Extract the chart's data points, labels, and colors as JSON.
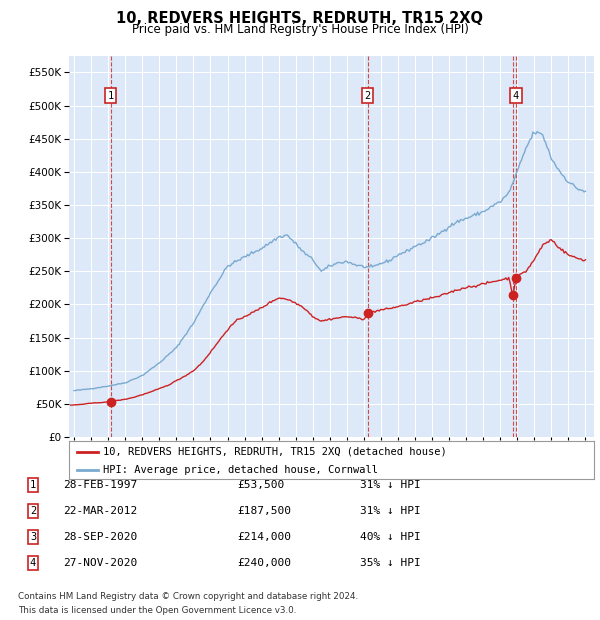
{
  "title": "10, REDVERS HEIGHTS, REDRUTH, TR15 2XQ",
  "subtitle": "Price paid vs. HM Land Registry's House Price Index (HPI)",
  "red_line_label": "10, REDVERS HEIGHTS, REDRUTH, TR15 2XQ (detached house)",
  "blue_line_label": "HPI: Average price, detached house, Cornwall",
  "background_color": "#dde8f8",
  "sale_points": [
    {
      "num": 1,
      "date": "28-FEB-1997",
      "price": 53500,
      "pct": "31% ↓ HPI",
      "year": 1997.15
    },
    {
      "num": 2,
      "date": "22-MAR-2012",
      "price": 187500,
      "pct": "31% ↓ HPI",
      "year": 2012.22
    },
    {
      "num": 3,
      "date": "28-SEP-2020",
      "price": 214000,
      "pct": "40% ↓ HPI",
      "year": 2020.75
    },
    {
      "num": 4,
      "date": "27-NOV-2020",
      "price": 240000,
      "pct": "35% ↓ HPI",
      "year": 2020.92
    }
  ],
  "table_rows": [
    {
      "num": 1,
      "date": "28-FEB-1997",
      "price": "£53,500",
      "pct": "31% ↓ HPI"
    },
    {
      "num": 2,
      "date": "22-MAR-2012",
      "price": "£187,500",
      "pct": "31% ↓ HPI"
    },
    {
      "num": 3,
      "date": "28-SEP-2020",
      "price": "£214,000",
      "pct": "40% ↓ HPI"
    },
    {
      "num": 4,
      "date": "27-NOV-2020",
      "price": "£240,000",
      "pct": "35% ↓ HPI"
    }
  ],
  "footer_line1": "Contains HM Land Registry data © Crown copyright and database right 2024.",
  "footer_line2": "This data is licensed under the Open Government Licence v3.0.",
  "ylim": [
    0,
    575000
  ],
  "xlim_start": 1994.7,
  "xlim_end": 2025.5,
  "yticks": [
    0,
    50000,
    100000,
    150000,
    200000,
    250000,
    300000,
    350000,
    400000,
    450000,
    500000,
    550000
  ]
}
